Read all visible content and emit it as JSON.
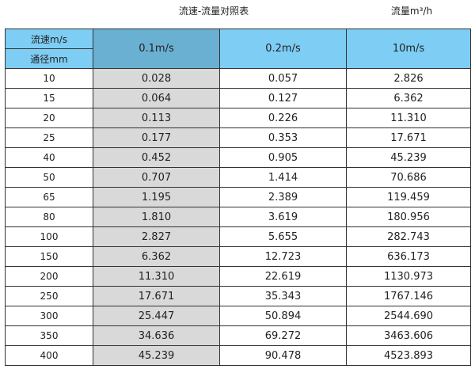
{
  "title": "流速-流量对照表",
  "unit_label": "流量m³/h",
  "header": {
    "velocity_label": "流速m/s",
    "diameter_label": "通径mm",
    "columns": [
      "0.1m/s",
      "0.2m/s",
      "10m/s"
    ]
  },
  "colors": {
    "header": "#7ecdf4",
    "header_selected": "#6ab0d2",
    "highlight_column": "#d9d9d9"
  },
  "rows": [
    [
      "10",
      "0.028",
      "0.057",
      "2.826"
    ],
    [
      "15",
      "0.064",
      "0.127",
      "6.362"
    ],
    [
      "20",
      "0.113",
      "0.226",
      "11.310"
    ],
    [
      "25",
      "0.177",
      "0.353",
      "17.671"
    ],
    [
      "40",
      "0.452",
      "0.905",
      "45.239"
    ],
    [
      "50",
      "0.707",
      "1.414",
      "70.686"
    ],
    [
      "65",
      "1.195",
      "2.389",
      "119.459"
    ],
    [
      "80",
      "1.810",
      "3.619",
      "180.956"
    ],
    [
      "100",
      "2.827",
      "5.655",
      "282.743"
    ],
    [
      "150",
      "6.362",
      "12.723",
      "636.173"
    ],
    [
      "200",
      "11.310",
      "22.619",
      "1130.973"
    ],
    [
      "250",
      "17.671",
      "35.343",
      "1767.146"
    ],
    [
      "300",
      "25.447",
      "50.894",
      "2544.690"
    ],
    [
      "350",
      "34.636",
      "69.272",
      "3463.606"
    ],
    [
      "400",
      "45.239",
      "90.478",
      "4523.893"
    ]
  ]
}
